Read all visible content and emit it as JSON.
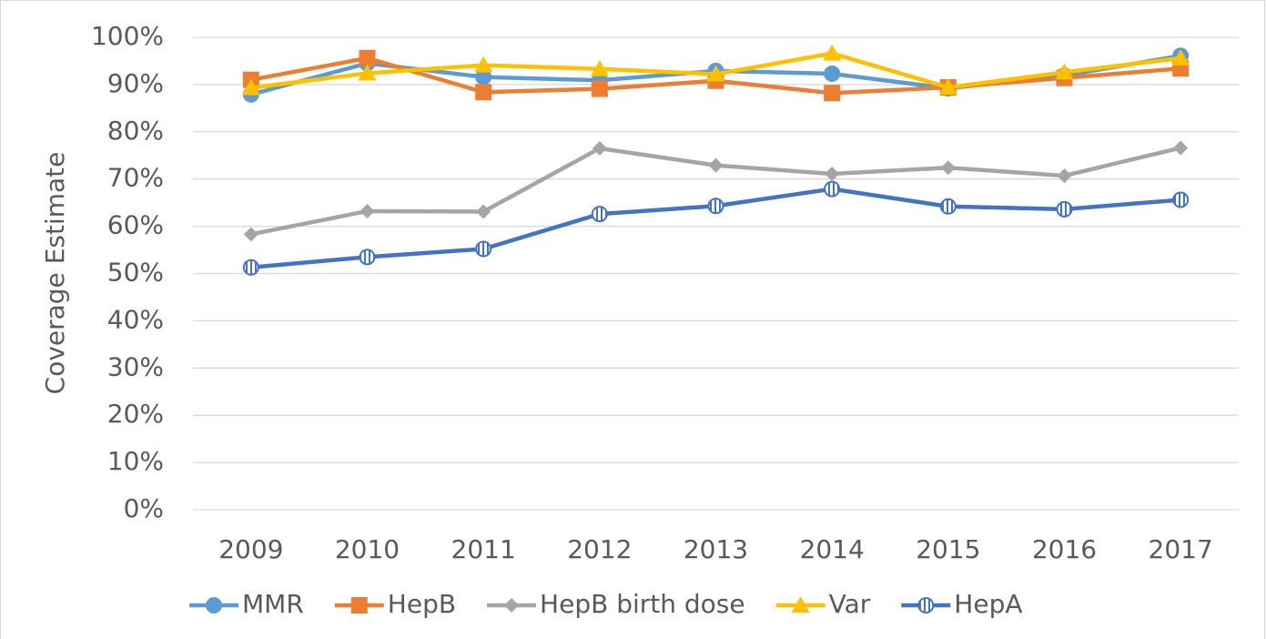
{
  "chart_data": {
    "type": "line",
    "y_label": "Coverage Estimate",
    "categories": [
      "2009",
      "2010",
      "2011",
      "2012",
      "2013",
      "2014",
      "2015",
      "2016",
      "2017"
    ],
    "ylim": [
      0,
      100
    ],
    "yticks": [
      {
        "value": 0,
        "label": "0%"
      },
      {
        "value": 10,
        "label": "10%"
      },
      {
        "value": 20,
        "label": "20%"
      },
      {
        "value": 30,
        "label": "30%"
      },
      {
        "value": 40,
        "label": "40%"
      },
      {
        "value": 50,
        "label": "50%"
      },
      {
        "value": 60,
        "label": "60%"
      },
      {
        "value": 70,
        "label": "70%"
      },
      {
        "value": 80,
        "label": "80%"
      },
      {
        "value": 90,
        "label": "90%"
      },
      {
        "value": 100,
        "label": "100%"
      }
    ],
    "grid": true,
    "legend": "bottom",
    "series": [
      {
        "name": "MMR",
        "color": "#5b9bd5",
        "marker": "circle",
        "values": [
          87.9,
          94.5,
          91.6,
          90.9,
          92.9,
          92.3,
          89.2,
          91.9,
          96.1
        ]
      },
      {
        "name": "HepB",
        "color": "#ed7d31",
        "marker": "square",
        "values": [
          91.0,
          95.6,
          88.4,
          89.1,
          90.8,
          88.2,
          89.4,
          91.4,
          93.4
        ]
      },
      {
        "name": "HepB birth dose",
        "color": "#a5a5a5",
        "marker": "diamond",
        "values": [
          58.3,
          63.2,
          63.1,
          76.5,
          72.9,
          71.1,
          72.4,
          70.7,
          76.6
        ]
      },
      {
        "name": "Var",
        "color": "#ffc000",
        "marker": "triangle",
        "values": [
          89.3,
          92.4,
          94.1,
          93.3,
          92.2,
          96.6,
          89.4,
          92.6,
          95.6
        ]
      },
      {
        "name": "HepA",
        "color": "#4472c4",
        "marker": "striped-circle",
        "values": [
          51.3,
          53.5,
          55.2,
          62.6,
          64.3,
          67.9,
          64.2,
          63.6,
          65.6
        ]
      }
    ]
  }
}
